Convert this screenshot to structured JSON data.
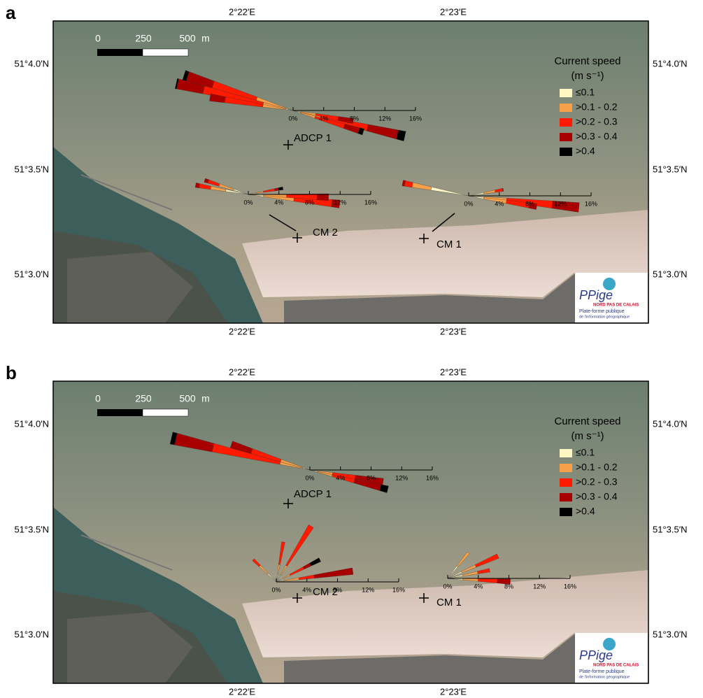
{
  "panels": [
    {
      "label": "a",
      "lon_labels": [
        "2°22′E",
        "2°23′E"
      ],
      "lat_labels": [
        "51°4.0′N",
        "51°3.5′N",
        "51°3.0′N"
      ],
      "scale_bar": {
        "ticks": [
          "0",
          "250",
          "500"
        ],
        "unit": "m"
      },
      "legend": {
        "title": "Current speed",
        "unit": "(m s⁻¹)",
        "items": [
          {
            "label": "≤0.1",
            "color": "#fff6c4"
          },
          {
            "label": ">0.1 - 0.2",
            "color": "#f6a04a"
          },
          {
            "label": ">0.2 - 0.3",
            "color": "#ff1a00"
          },
          {
            "label": ">0.3 - 0.4",
            "color": "#a80000"
          },
          {
            "label": ">0.4",
            "color": "#000000"
          }
        ]
      },
      "sites": [
        {
          "label": "ADCP 1",
          "rose_ticks": [
            {
              "value": 0,
              "label": "0%"
            },
            {
              "value": 4,
              "label": "4%"
            },
            {
              "value": 8,
              "label": "8%"
            },
            {
              "value": 12,
              "label": "12%"
            },
            {
              "value": 16,
              "label": "16%"
            }
          ],
          "petals": [
            {
              "direction": 283,
              "segments": [
                1,
                3,
                8,
                3.5,
                0.2
              ]
            },
            {
              "direction": 288,
              "segments": [
                1,
                4,
                6,
                3.5,
                0.5
              ]
            },
            {
              "direction": 279,
              "segments": [
                1,
                3,
                5,
                2,
                0
              ]
            },
            {
              "direction": 103,
              "segments": [
                1,
                3,
                6,
                4,
                1
              ]
            },
            {
              "direction": 107,
              "segments": [
                1,
                2,
                4,
                2,
                0.6
              ]
            },
            {
              "direction": 100,
              "segments": [
                1,
                2,
                3,
                2,
                0
              ]
            }
          ]
        },
        {
          "label": "CM 2",
          "rose_ticks": [
            {
              "value": 0,
              "label": "0%"
            },
            {
              "value": 4,
              "label": "4%"
            },
            {
              "value": 8,
              "label": "8%"
            },
            {
              "value": 12,
              "label": "12%"
            },
            {
              "value": 16,
              "label": "16%"
            }
          ],
          "petals": [
            {
              "direction": 280,
              "segments": [
                3,
                2,
                1.5,
                0.5,
                0
              ]
            },
            {
              "direction": 288,
              "segments": [
                2,
                2,
                1.5,
                0.5,
                0
              ]
            },
            {
              "direction": 96,
              "segments": [
                2,
                4,
                5,
                1,
                0
              ]
            },
            {
              "direction": 80,
              "segments": [
                1,
                1,
                1.5,
                0.5,
                0.6
              ]
            },
            {
              "direction": 92,
              "segments": [
                2,
                3,
                4,
                1.5,
                0
              ]
            }
          ]
        },
        {
          "label": "CM 1",
          "rose_ticks": [
            {
              "value": 0,
              "label": "0%"
            },
            {
              "value": 4,
              "label": "4%"
            },
            {
              "value": 8,
              "label": "8%"
            },
            {
              "value": 12,
              "label": "12%"
            },
            {
              "value": 16,
              "label": "16%"
            }
          ],
          "petals": [
            {
              "direction": 281,
              "segments": [
                5,
                2.5,
                1,
                0.3,
                0
              ]
            },
            {
              "direction": 96,
              "segments": [
                2,
                3,
                6,
                3.5,
                0
              ]
            },
            {
              "direction": 99,
              "segments": [
                2,
                3,
                3,
                1,
                0
              ]
            },
            {
              "direction": 80,
              "segments": [
                2,
                1.5,
                1,
                0.1,
                0
              ]
            }
          ]
        }
      ],
      "logo": {
        "title": "PPige",
        "region": "NORD PAS DE CALAIS",
        "line1": "Plate-forme publique",
        "line2": "de l'information géographique"
      }
    },
    {
      "label": "b",
      "lon_labels": [
        "2°22′E",
        "2°23′E"
      ],
      "lat_labels": [
        "51°4.0′N",
        "51°3.5′N",
        "51°3.0′N"
      ],
      "scale_bar": {
        "ticks": [
          "0",
          "250",
          "500"
        ],
        "unit": "m"
      },
      "legend": {
        "title": "Current speed",
        "unit": "(m s⁻¹)",
        "items": [
          {
            "label": "≤0.1",
            "color": "#fff6c4"
          },
          {
            "label": ">0.1 - 0.2",
            "color": "#f6a04a"
          },
          {
            "label": ">0.2 - 0.3",
            "color": "#ff1a00"
          },
          {
            "label": ">0.3 - 0.4",
            "color": "#a80000"
          },
          {
            "label": ">0.4",
            "color": "#000000"
          }
        ]
      },
      "sites": [
        {
          "label": "ADCP 1",
          "rose_ticks": [
            {
              "value": 0,
              "label": "0%"
            },
            {
              "value": 4,
              "label": "4%"
            },
            {
              "value": 8,
              "label": "8%"
            },
            {
              "value": 12,
              "label": "12%"
            },
            {
              "value": 16,
              "label": "16%"
            }
          ],
          "petals": [
            {
              "direction": 283,
              "segments": [
                1,
                3,
                9,
                5,
                0.6
              ]
            },
            {
              "direction": 288,
              "segments": [
                1,
                3,
                4,
                2.8,
                0
              ]
            },
            {
              "direction": 104,
              "segments": [
                1,
                2,
                3,
                3.5,
                1
              ]
            },
            {
              "direction": 99,
              "segments": [
                1,
                2,
                3,
                3.7,
                0
              ]
            }
          ]
        },
        {
          "label": "CM 2",
          "rose_ticks": [
            {
              "value": 0,
              "label": "0%"
            },
            {
              "value": 4,
              "label": "4%"
            },
            {
              "value": 8,
              "label": "8%"
            },
            {
              "value": 12,
              "label": "12%"
            },
            {
              "value": 16,
              "label": "16%"
            }
          ],
          "petals": [
            {
              "direction": 32,
              "segments": [
                1,
                1.5,
                6.1,
                0,
                0
              ]
            },
            {
              "direction": 10,
              "segments": [
                1,
                1.3,
                3,
                0,
                0
              ]
            },
            {
              "direction": 82,
              "segments": [
                1,
                2,
                2,
                5.1,
                0
              ]
            },
            {
              "direction": 63,
              "segments": [
                1,
                1,
                2,
                1,
                1.4
              ]
            },
            {
              "direction": 314,
              "segments": [
                1.5,
                1.5,
                1.2,
                0,
                0
              ]
            }
          ]
        },
        {
          "label": "CM 1",
          "rose_ticks": [
            {
              "value": 0,
              "label": "0%"
            },
            {
              "value": 4,
              "label": "4%"
            },
            {
              "value": 8,
              "label": "8%"
            },
            {
              "value": 12,
              "label": "12%"
            },
            {
              "value": 16,
              "label": "16%"
            }
          ],
          "petals": [
            {
              "direction": 66,
              "segments": [
                2,
                2,
                3.2,
                0,
                0
              ]
            },
            {
              "direction": 93,
              "segments": [
                2,
                2,
                2.5,
                1.7,
                0
              ]
            },
            {
              "direction": 39,
              "segments": [
                2,
                2.3,
                0,
                0,
                0
              ]
            },
            {
              "direction": 79,
              "segments": [
                2,
                2,
                1.6,
                0,
                0
              ]
            }
          ]
        }
      ],
      "logo": {
        "title": "PPige",
        "region": "NORD PAS DE CALAIS",
        "line1": "Plate-forme publique",
        "line2": "de l'information géographique"
      }
    }
  ]
}
